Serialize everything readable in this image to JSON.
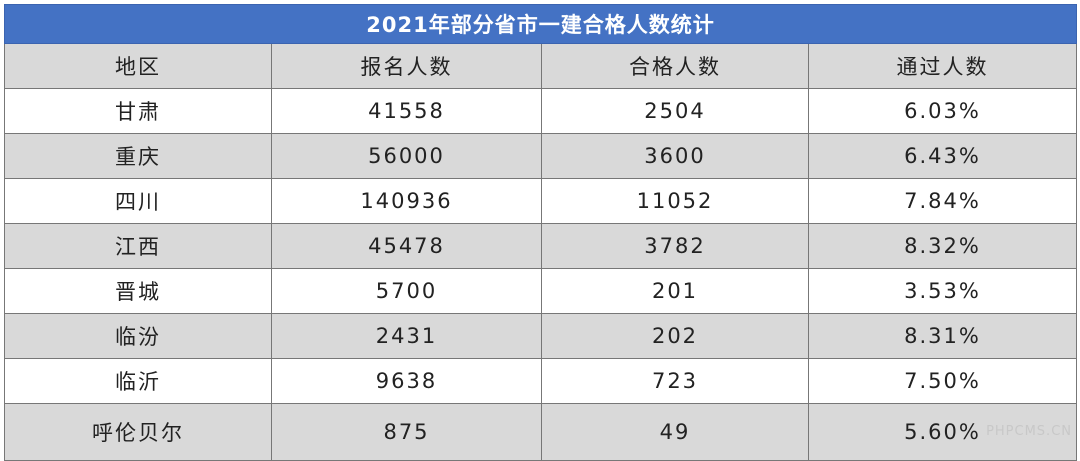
{
  "table": {
    "title": "2021年部分省市一建合格人数统计",
    "header": [
      "地区",
      "报名人数",
      "合格人数",
      "通过人数"
    ],
    "rows": [
      [
        "甘肃",
        "41558",
        "2504",
        "6.03%"
      ],
      [
        "重庆",
        "56000",
        "3600",
        "6.43%"
      ],
      [
        "四川",
        "140936",
        "11052",
        "7.84%"
      ],
      [
        "江西",
        "45478",
        "3782",
        "8.32%"
      ],
      [
        "晋城",
        "5700",
        "201",
        "3.53%"
      ],
      [
        "临汾",
        "2431",
        "202",
        "8.31%"
      ],
      [
        "临沂",
        "9638",
        "723",
        "7.50%"
      ],
      [
        "呼伦贝尔",
        "875",
        "49",
        "5.60%"
      ]
    ]
  },
  "watermark": "PHPCMS.CN"
}
